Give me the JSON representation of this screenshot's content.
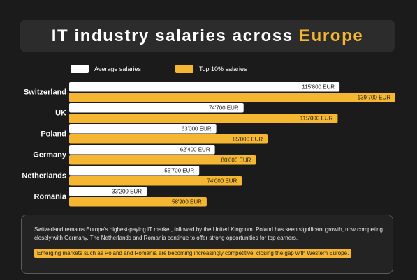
{
  "title": {
    "main": "IT industry salaries across",
    "accent": "Europe"
  },
  "legend": {
    "average": "Average salaries",
    "top": "Top 10% salaries"
  },
  "colors": {
    "average": "#ffffff",
    "top": "#f5b731",
    "background": "#1b1b1b",
    "accent": "#f5b731"
  },
  "chart_data": {
    "type": "bar",
    "orientation": "horizontal",
    "categories": [
      "Switzerland",
      "UK",
      "Poland",
      "Germany",
      "Netherlands",
      "Romania"
    ],
    "series": [
      {
        "name": "Average salaries",
        "values": [
          115800,
          74700,
          63000,
          62400,
          55700,
          33200
        ],
        "labels": [
          "115'800 EUR",
          "74'700 EUR",
          "63'000 EUR",
          "62'400 EUR",
          "55'700 EUR",
          "33'200 EUR"
        ]
      },
      {
        "name": "Top 10% salaries",
        "values": [
          139700,
          115000,
          85000,
          80000,
          74000,
          58900
        ],
        "labels": [
          "139'700 EUR",
          "115'000 EUR",
          "85'000 EUR",
          "80'000 EUR",
          "74'000 EUR",
          "58'900 EUR"
        ]
      }
    ],
    "xlim": [
      0,
      139700
    ],
    "grid": false,
    "legend_position": "top"
  },
  "summary": {
    "text": "Switzerland remains Europe's highest-paying IT market, followed by the United Kingdom. Poland has seen significant growth, now competing closely with Germany. The Netherlands and Romania continue to offer strong opportunities for top earners.",
    "highlight": "Emerging markets such as Poland and Romania are becoming increasingly competitive, closing the gap with Western Europe."
  }
}
